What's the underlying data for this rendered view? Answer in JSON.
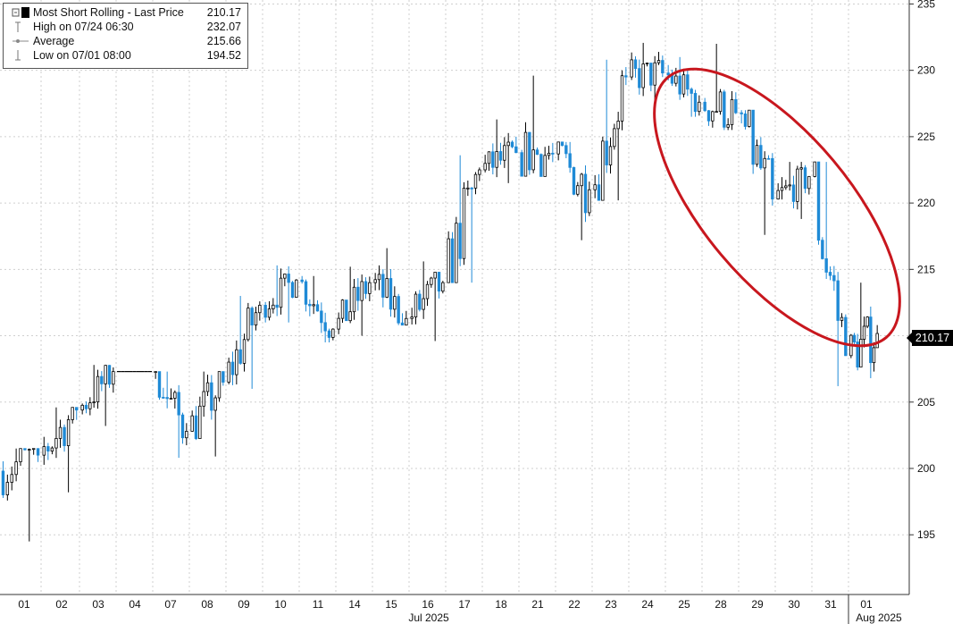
{
  "legend": {
    "title": "Most Short Rolling - Last Price",
    "title_value": "210.17",
    "high_label": "High on 07/24 06:30",
    "high_value": "232.07",
    "average_label": "Average",
    "average_value": "215.66",
    "low_label": "Low on 07/01 08:00",
    "low_value": "194.52"
  },
  "last_price_badge": "210.17",
  "colors": {
    "up_candle": "#000000",
    "down_candle": "#1f8ad6",
    "highlight_ellipse": "#c8171e",
    "grid": "#cfcfcf",
    "badge": "#000000"
  },
  "chart_data": {
    "type": "candlestick",
    "title": "Most Short Rolling - Last Price",
    "y_axis": {
      "side": "right",
      "ticks": [
        195,
        200,
        205,
        210,
        215,
        220,
        225,
        230,
        235
      ],
      "tick_labels": [
        "195",
        "200",
        "205",
        "210",
        "215",
        "220",
        "225",
        "230",
        "235"
      ],
      "range": [
        190.5,
        235.3
      ]
    },
    "x_axis": {
      "day_labels": [
        "01",
        "02",
        "03",
        "04",
        "07",
        "08",
        "09",
        "10",
        "11",
        "14",
        "15",
        "16",
        "17",
        "18",
        "21",
        "22",
        "23",
        "24",
        "25",
        "28",
        "29",
        "30",
        "31",
        "01"
      ],
      "month_labels": [
        "Jul 2025",
        "Aug 2025"
      ]
    },
    "grid": true,
    "legend_position": "top-left",
    "last_price": 210.17,
    "high": 232.07,
    "high_time": "07/24 06:30",
    "low": 194.52,
    "low_time": "07/01 08:00",
    "average": 215.66,
    "annotation": "red ellipse around the decline from the 07/24 high into 07/31",
    "price_path_by_day": [
      {
        "day": "07/01",
        "open": 199.8,
        "close": 201.0,
        "high": 201.5,
        "low": 194.5
      },
      {
        "day": "07/02",
        "open": 201.0,
        "close": 204.4,
        "high": 204.6,
        "low": 198.2
      },
      {
        "day": "07/03",
        "open": 204.4,
        "close": 207.3,
        "high": 207.8,
        "low": 203.2
      },
      {
        "day": "07/04",
        "open": 207.3,
        "close": 207.3,
        "high": 207.3,
        "low": 207.3
      },
      {
        "day": "07/07",
        "open": 207.3,
        "close": 202.8,
        "high": 207.3,
        "low": 200.8
      },
      {
        "day": "07/08",
        "open": 202.8,
        "close": 206.5,
        "high": 207.3,
        "low": 200.9
      },
      {
        "day": "07/09",
        "open": 206.5,
        "close": 212.3,
        "high": 213.0,
        "low": 206.0
      },
      {
        "day": "07/10",
        "open": 212.3,
        "close": 214.2,
        "high": 215.3,
        "low": 211.0
      },
      {
        "day": "07/11",
        "open": 214.2,
        "close": 210.5,
        "high": 214.5,
        "low": 209.5
      },
      {
        "day": "07/14",
        "open": 210.5,
        "close": 214.0,
        "high": 215.2,
        "low": 210.0
      },
      {
        "day": "07/15",
        "open": 214.0,
        "close": 211.3,
        "high": 216.6,
        "low": 210.8
      },
      {
        "day": "07/16",
        "open": 211.3,
        "close": 214.0,
        "high": 215.6,
        "low": 209.6
      },
      {
        "day": "07/17",
        "open": 214.0,
        "close": 222.5,
        "high": 223.6,
        "low": 214.0
      },
      {
        "day": "07/18",
        "open": 222.5,
        "close": 223.8,
        "high": 226.3,
        "low": 221.5
      },
      {
        "day": "07/21",
        "open": 223.8,
        "close": 223.7,
        "high": 229.6,
        "low": 222.0
      },
      {
        "day": "07/22",
        "open": 223.7,
        "close": 221.0,
        "high": 224.6,
        "low": 217.2
      },
      {
        "day": "07/23",
        "open": 221.0,
        "close": 229.5,
        "high": 230.8,
        "low": 220.2
      },
      {
        "day": "07/24",
        "open": 229.5,
        "close": 229.8,
        "high": 232.07,
        "low": 227.2
      },
      {
        "day": "07/25",
        "open": 229.8,
        "close": 227.6,
        "high": 231.0,
        "low": 226.5
      },
      {
        "day": "07/28",
        "open": 227.6,
        "close": 226.8,
        "high": 232.0,
        "low": 225.5
      },
      {
        "day": "07/29",
        "open": 226.8,
        "close": 220.3,
        "high": 227.0,
        "low": 217.6
      },
      {
        "day": "07/30",
        "open": 220.3,
        "close": 222.0,
        "high": 223.1,
        "low": 218.8
      },
      {
        "day": "07/31",
        "open": 222.0,
        "close": 208.5,
        "high": 223.1,
        "low": 206.2
      },
      {
        "day": "08/01",
        "open": 208.5,
        "close": 210.17,
        "high": 214.0,
        "low": 206.8
      }
    ]
  }
}
